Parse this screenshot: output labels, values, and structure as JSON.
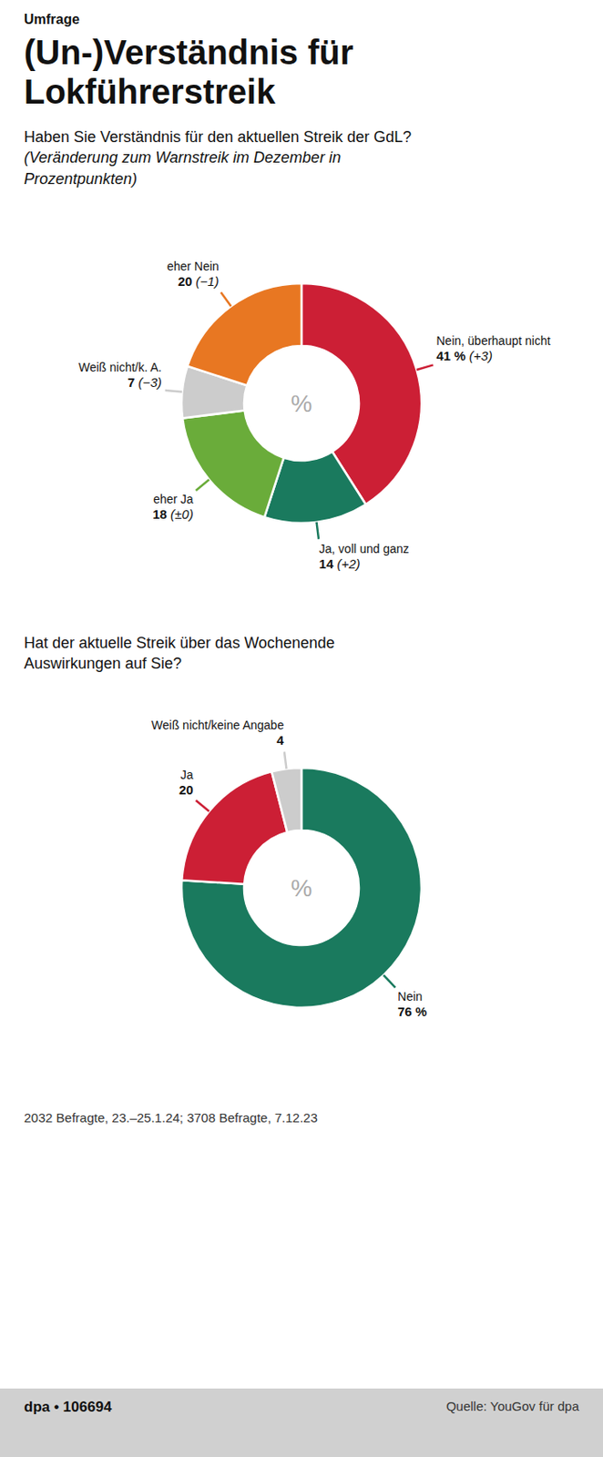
{
  "label": "Umfrage",
  "title": "(Un-)Verständnis für\nLokführerstreik",
  "footnote": "2032 Befragte, 23.–25.1.24; 3708 Befragte, 7.12.23",
  "source": "Quelle: YouGov für dpa",
  "credit": "dpa • 106694",
  "chart_data": [
    {
      "type": "pie",
      "title": "Haben Sie Verständnis für den aktuellen Streik der GdL?",
      "subtitle": "(Veränderung zum Warnstreik im Dezember in Prozentpunkten)",
      "categories": [
        "Nein, überhaupt nicht",
        "Ja, voll und ganz",
        "eher Ja",
        "Weiß nicht/k. A.",
        "eher Nein"
      ],
      "values": [
        41,
        14,
        18,
        7,
        20
      ],
      "value_labels": [
        "41 %",
        "14",
        "18",
        "7",
        "20"
      ],
      "change_labels": [
        "(+3)",
        "(+2)",
        "(±0)",
        "(−3)",
        "(−1)"
      ],
      "colors": [
        "#cc1f35",
        "#1a7a5e",
        "#6aac3a",
        "#cccccc",
        "#e87722"
      ],
      "center_text": "%"
    },
    {
      "type": "pie",
      "title": "Hat der aktuelle Streik über das Wochenende Auswirkungen auf Sie?",
      "categories": [
        "Nein",
        "Ja",
        "Weiß nicht/keine Angabe"
      ],
      "values": [
        76,
        20,
        4
      ],
      "value_labels": [
        "76 %",
        "20",
        "4"
      ],
      "colors": [
        "#1a7a5e",
        "#cc1f35",
        "#cccccc"
      ],
      "center_text": "%"
    }
  ]
}
